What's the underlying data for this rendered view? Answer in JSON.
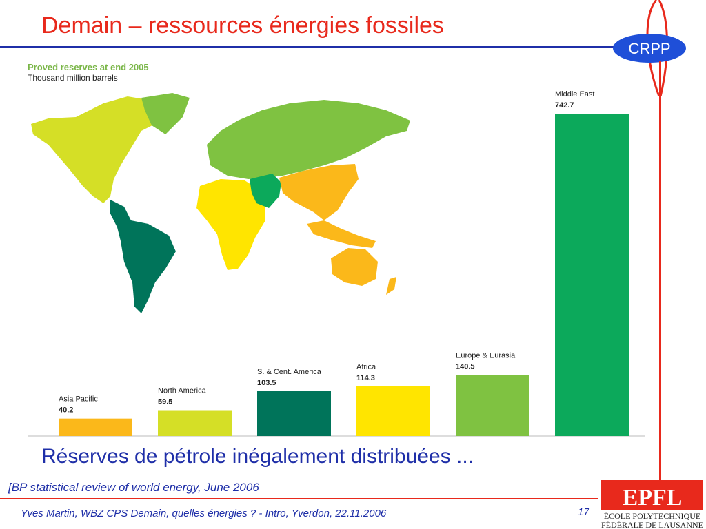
{
  "slide": {
    "title": "Demain – ressources énergies fossiles",
    "subtitle": "Réserves de pétrole inégalement distribuées ...",
    "source": "[BP statistical review  of world energy, June 2006",
    "footer": "Yves Martin, WBZ CPS Demain, quelles énergies ? - Intro, Yverdon, 22.11.2006",
    "page_number": "17",
    "logo_text": "CRPP",
    "epfl_text_line1": "ÉCOLE POLYTECHNIQUE",
    "epfl_text_line2": "FÉDÉRALE DE LAUSANNE",
    "epfl_mark": "EPFL"
  },
  "chart_data": {
    "type": "bar",
    "title": "Proved reserves at end 2005",
    "ylabel": "Thousand million barrels",
    "categories": [
      "Asia Pacific",
      "North America",
      "S. & Cent. America",
      "Africa",
      "Europe & Eurasia",
      "Middle East"
    ],
    "values": [
      40.2,
      59.5,
      103.5,
      114.3,
      140.5,
      742.7
    ],
    "value_labels": [
      "40.2",
      "59.5",
      "103.5",
      "114.3",
      "140.5",
      "742.7"
    ],
    "colors": [
      "#fbb81a",
      "#d5df26",
      "#00745a",
      "#ffe500",
      "#7fc241",
      "#0ca95b"
    ],
    "ylim": [
      0,
      742.7
    ]
  },
  "colors": {
    "title": "#e8291c",
    "text_blue": "#1f2fa8",
    "accent_red": "#e8291c"
  }
}
